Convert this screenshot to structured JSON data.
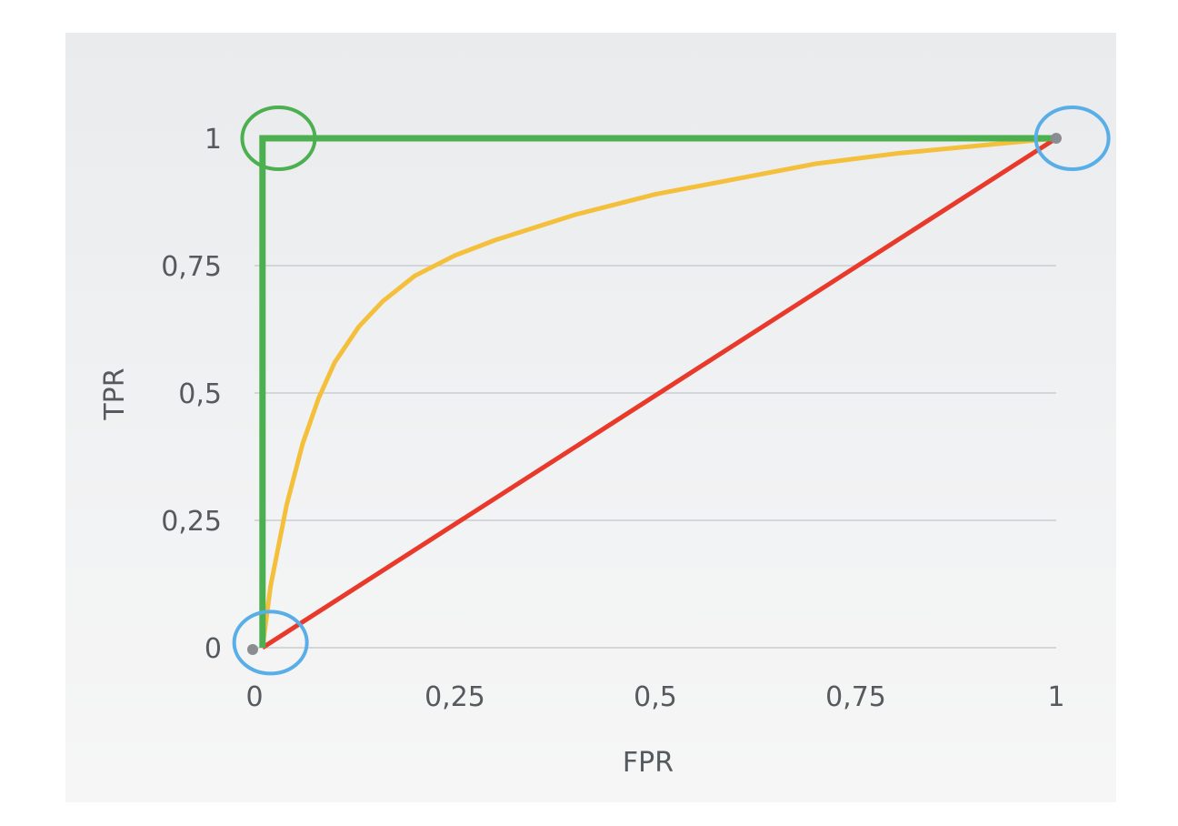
{
  "chart_data": {
    "type": "line",
    "xlabel": "FPR",
    "ylabel": "TPR",
    "xlim": [
      0,
      1
    ],
    "ylim": [
      0,
      1
    ],
    "x_ticks": [
      "0",
      "0,25",
      "0,5",
      "0,75",
      "1"
    ],
    "y_ticks": [
      "0",
      "0,25",
      "0,5",
      "0,75",
      "1"
    ],
    "x_tick_values": [
      0,
      0.25,
      0.5,
      0.75,
      1
    ],
    "y_tick_values": [
      0,
      0.25,
      0.5,
      0.75,
      1
    ],
    "grid": "horizontal",
    "series": [
      {
        "color": "#4caf50",
        "points": [
          [
            0.01,
            0.0
          ],
          [
            0.01,
            1.0
          ],
          [
            1.0,
            1.0
          ]
        ]
      },
      {
        "color": "#f4c03c",
        "points": [
          [
            0.01,
            0.0
          ],
          [
            0.02,
            0.12
          ],
          [
            0.04,
            0.28
          ],
          [
            0.06,
            0.4
          ],
          [
            0.08,
            0.49
          ],
          [
            0.1,
            0.56
          ],
          [
            0.13,
            0.63
          ],
          [
            0.16,
            0.68
          ],
          [
            0.2,
            0.73
          ],
          [
            0.25,
            0.77
          ],
          [
            0.3,
            0.8
          ],
          [
            0.4,
            0.85
          ],
          [
            0.5,
            0.89
          ],
          [
            0.6,
            0.92
          ],
          [
            0.7,
            0.95
          ],
          [
            0.8,
            0.97
          ],
          [
            0.9,
            0.985
          ],
          [
            1.0,
            1.0
          ]
        ]
      },
      {
        "color": "#e8392a",
        "points": [
          [
            0.01,
            0.0
          ],
          [
            1.0,
            1.0
          ]
        ]
      }
    ],
    "endpoints": [
      [
        0,
        0
      ],
      [
        1,
        1
      ]
    ],
    "highlight_circles": [
      {
        "color": "#4caf50",
        "x": 0.03,
        "y": 1.0
      },
      {
        "color": "#5aaee8",
        "x": 1.02,
        "y": 1.0
      },
      {
        "color": "#5aaee8",
        "x": 0.02,
        "y": 0.01
      }
    ]
  }
}
